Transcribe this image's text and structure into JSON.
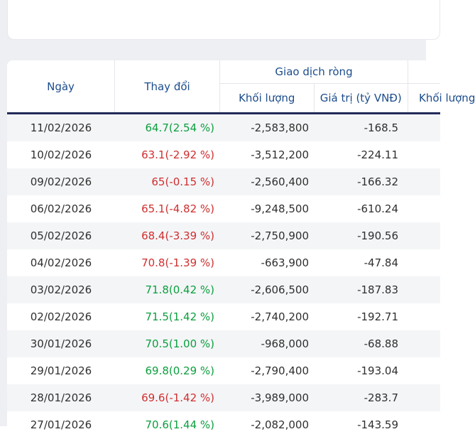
{
  "page": {
    "background": "#edeff3"
  },
  "colors": {
    "up": "#0b9f3e",
    "down": "#d02f2f",
    "header_text": "#1b4c8c",
    "header_underline": "#232b57",
    "stripe": "#f4f5f7"
  },
  "table": {
    "header": {
      "date": "Ngày",
      "change": "Thay đổi",
      "net_group": "Giao dịch ròng",
      "volume": "Khối lượng",
      "value": "Giá trị (tỷ VNĐ)",
      "next_partial": "Khối lượng"
    },
    "rows": [
      {
        "date": "11/02/2026",
        "change": "64.7(2.54 %)",
        "dir": "up",
        "volume": "-2,583,800",
        "value": "-168.5"
      },
      {
        "date": "10/02/2026",
        "change": "63.1(-2.92 %)",
        "dir": "down",
        "volume": "-3,512,200",
        "value": "-224.11"
      },
      {
        "date": "09/02/2026",
        "change": "65(-0.15 %)",
        "dir": "down",
        "volume": "-2,560,400",
        "value": "-166.32"
      },
      {
        "date": "06/02/2026",
        "change": "65.1(-4.82 %)",
        "dir": "down",
        "volume": "-9,248,500",
        "value": "-610.24"
      },
      {
        "date": "05/02/2026",
        "change": "68.4(-3.39 %)",
        "dir": "down",
        "volume": "-2,750,900",
        "value": "-190.56"
      },
      {
        "date": "04/02/2026",
        "change": "70.8(-1.39 %)",
        "dir": "down",
        "volume": "-663,900",
        "value": "-47.84"
      },
      {
        "date": "03/02/2026",
        "change": "71.8(0.42 %)",
        "dir": "up",
        "volume": "-2,606,500",
        "value": "-187.83"
      },
      {
        "date": "02/02/2026",
        "change": "71.5(1.42 %)",
        "dir": "up",
        "volume": "-2,740,200",
        "value": "-192.71"
      },
      {
        "date": "30/01/2026",
        "change": "70.5(1.00 %)",
        "dir": "up",
        "volume": "-968,000",
        "value": "-68.88"
      },
      {
        "date": "29/01/2026",
        "change": "69.8(0.29 %)",
        "dir": "up",
        "volume": "-2,790,400",
        "value": "-193.04"
      },
      {
        "date": "28/01/2026",
        "change": "69.6(-1.42 %)",
        "dir": "down",
        "volume": "-3,989,000",
        "value": "-283.7"
      },
      {
        "date": "27/01/2026",
        "change": "70.6(1.44 %)",
        "dir": "up",
        "volume": "-2,082,000",
        "value": "-143.59"
      }
    ]
  }
}
